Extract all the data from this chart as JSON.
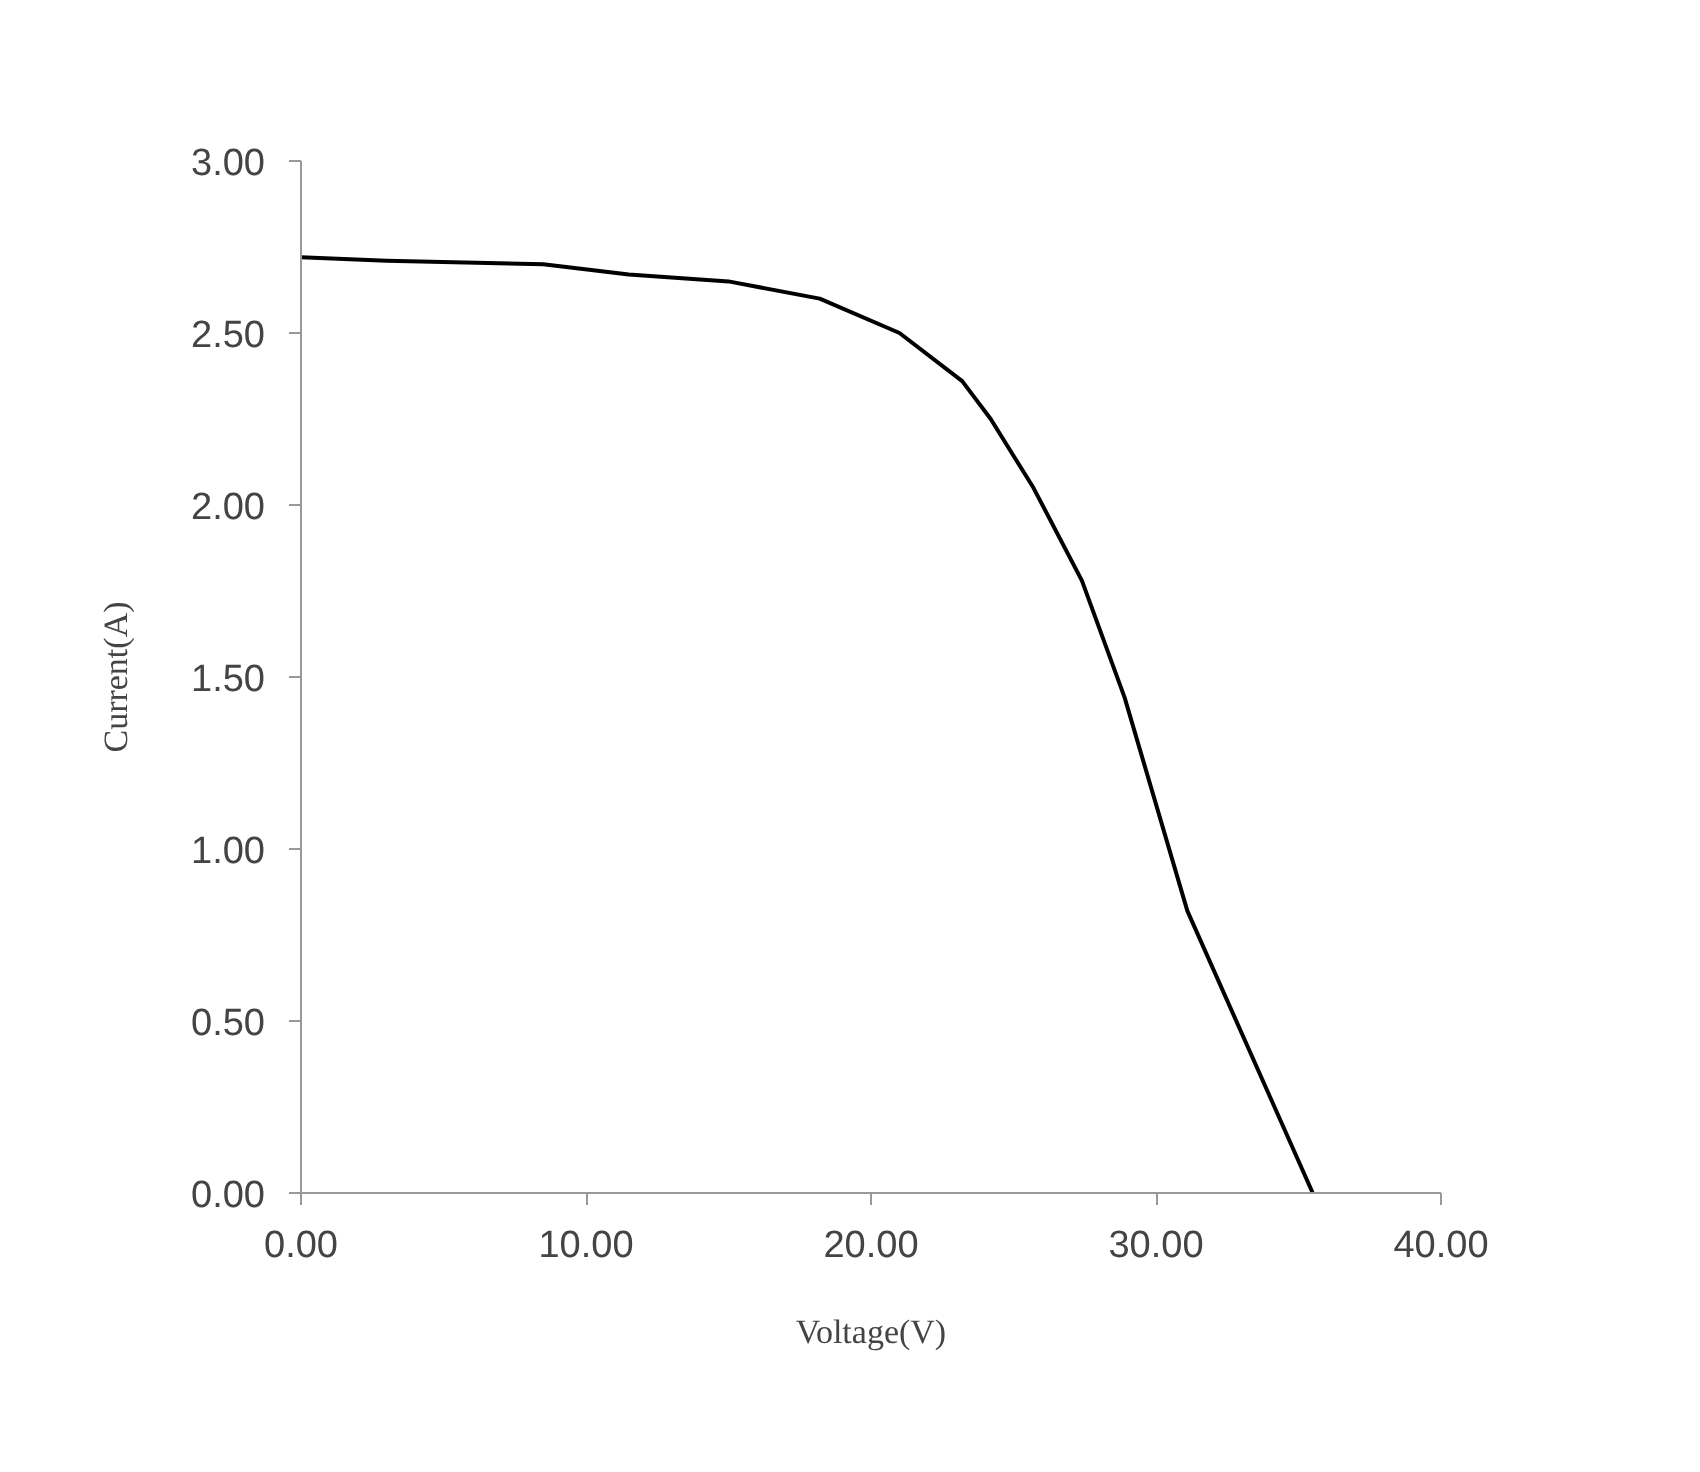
{
  "chart_data": {
    "type": "line",
    "xlabel": "Voltage(V)",
    "ylabel": "Current(A)",
    "x": [
      0,
      3,
      8.5,
      11.5,
      15,
      18.2,
      21,
      23.2,
      24.2,
      25.7,
      27.4,
      28.9,
      31.1,
      35.5
    ],
    "series": [
      {
        "color": "#000000",
        "values": [
          2.72,
          2.71,
          2.7,
          2.67,
          2.65,
          2.6,
          2.5,
          2.36,
          2.25,
          2.05,
          1.78,
          1.44,
          0.82,
          0.0
        ]
      }
    ],
    "xlim": [
      0,
      40
    ],
    "xticks": [
      {
        "value": 0,
        "label": "0.00"
      },
      {
        "value": 10,
        "label": "10.00"
      },
      {
        "value": 20,
        "label": "20.00"
      },
      {
        "value": 30,
        "label": "30.00"
      },
      {
        "value": 40,
        "label": "40.00"
      }
    ],
    "ylim": [
      0,
      3
    ],
    "yticks": [
      {
        "value": 0,
        "label": "0.00"
      },
      {
        "value": 0.5,
        "label": "0.50"
      },
      {
        "value": 1,
        "label": "1.00"
      },
      {
        "value": 1.5,
        "label": "1.50"
      },
      {
        "value": 2,
        "label": "2.00"
      },
      {
        "value": 2.5,
        "label": "2.50"
      },
      {
        "value": 3,
        "label": "3.00"
      }
    ],
    "grid": false,
    "marker": "none",
    "line_style": "solid"
  }
}
